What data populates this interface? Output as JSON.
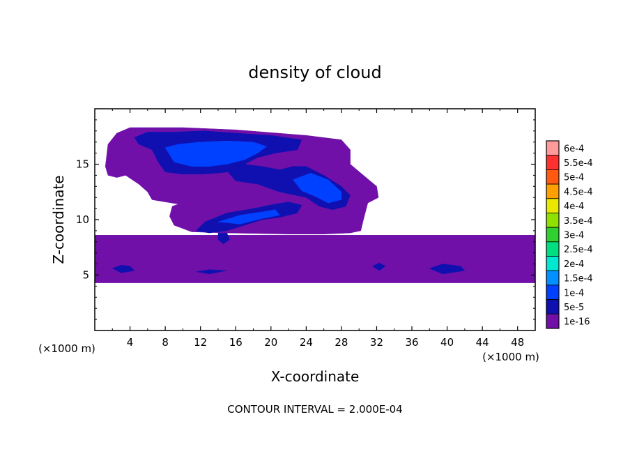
{
  "chart_data": {
    "type": "heatmap",
    "title": "density of cloud",
    "xlabel": "X-coordinate",
    "ylabel": "Z-coordinate",
    "x_unit": "(×1000 m)",
    "y_unit": "(×1000 m)",
    "xlim": [
      0,
      50
    ],
    "ylim": [
      0,
      20
    ],
    "x_ticks": [
      "4",
      "8",
      "12",
      "16",
      "20",
      "24",
      "28",
      "32",
      "36",
      "40",
      "44",
      "48"
    ],
    "y_ticks": [
      "5",
      "10",
      "15"
    ],
    "footer": "CONTOUR INTERVAL = 2.000E-04",
    "colorbar": {
      "labels": [
        "6e-4",
        "5.5e-4",
        "5e-4",
        "4.5e-4",
        "4e-4",
        "3.5e-4",
        "3e-4",
        "2.5e-4",
        "2e-4",
        "1.5e-4",
        "1e-4",
        "5e-5",
        "1e-16"
      ],
      "colors": [
        "#ff9a9a",
        "#ff3030",
        "#ff5a10",
        "#ffa000",
        "#e8e800",
        "#90e000",
        "#30d030",
        "#00e080",
        "#00e8d0",
        "#0090ff",
        "#0040ff",
        "#1010b0",
        "#7010a8"
      ]
    },
    "regions": [
      {
        "level": "1e-16",
        "polygon": [
          [
            0,
            8.6
          ],
          [
            50,
            8.6
          ],
          [
            50,
            4.3
          ],
          [
            0,
            4.3
          ]
        ]
      },
      {
        "level": "1e-16",
        "polygon": [
          [
            1.2,
            14.8
          ],
          [
            1.5,
            16.8
          ],
          [
            2.5,
            17.8
          ],
          [
            4,
            18.3
          ],
          [
            10,
            18.3
          ],
          [
            16,
            18.1
          ],
          [
            24,
            17.6
          ],
          [
            28,
            17.2
          ],
          [
            29,
            16.3
          ],
          [
            29,
            15
          ],
          [
            30.5,
            14
          ],
          [
            32,
            13
          ],
          [
            32.2,
            12
          ],
          [
            31,
            11.5
          ],
          [
            30.5,
            10
          ],
          [
            30.2,
            9
          ],
          [
            29,
            8.8
          ],
          [
            26,
            8.7
          ],
          [
            22,
            8.7
          ],
          [
            15,
            8.8
          ],
          [
            11,
            8.9
          ],
          [
            9,
            9.5
          ],
          [
            8.5,
            10.3
          ],
          [
            8.8,
            11.2
          ],
          [
            9.5,
            11.4
          ],
          [
            8,
            11.6
          ],
          [
            6.5,
            11.8
          ],
          [
            6,
            12.5
          ],
          [
            5,
            13.2
          ],
          [
            3.5,
            14
          ],
          [
            2.5,
            13.8
          ],
          [
            1.5,
            14
          ]
        ]
      },
      {
        "level": "5e-5",
        "polygon": [
          [
            4.5,
            17.4
          ],
          [
            6,
            17.9
          ],
          [
            9,
            17.9
          ],
          [
            12.5,
            18
          ],
          [
            16,
            17.8
          ],
          [
            20,
            17.6
          ],
          [
            23.5,
            17.2
          ],
          [
            23,
            16.3
          ],
          [
            20.5,
            16
          ],
          [
            18.5,
            15.6
          ],
          [
            17,
            15
          ],
          [
            16,
            14.4
          ],
          [
            14,
            14.2
          ],
          [
            12,
            14.1
          ],
          [
            10,
            14.1
          ],
          [
            8,
            14.3
          ],
          [
            7.2,
            15.2
          ],
          [
            6.5,
            16.3
          ],
          [
            5,
            16.8
          ]
        ]
      },
      {
        "level": "5e-5",
        "polygon": [
          [
            15,
            14.4
          ],
          [
            17,
            15
          ],
          [
            19,
            14.8
          ],
          [
            21,
            14.5
          ],
          [
            22.5,
            14.8
          ],
          [
            24,
            14.8
          ],
          [
            26,
            14
          ],
          [
            28,
            13
          ],
          [
            29,
            12.2
          ],
          [
            28.5,
            11.2
          ],
          [
            27,
            10.9
          ],
          [
            25.5,
            11.2
          ],
          [
            24,
            12
          ],
          [
            21,
            12.5
          ],
          [
            18.5,
            13.2
          ],
          [
            16,
            13.5
          ]
        ]
      },
      {
        "level": "5e-5",
        "polygon": [
          [
            11.5,
            9
          ],
          [
            12.5,
            9.8
          ],
          [
            15,
            10.6
          ],
          [
            18,
            11
          ],
          [
            20.5,
            11.4
          ],
          [
            22,
            11.6
          ],
          [
            23.5,
            11.3
          ],
          [
            23,
            10.6
          ],
          [
            21,
            10.2
          ],
          [
            19,
            10
          ],
          [
            17,
            9.5
          ],
          [
            15,
            9
          ],
          [
            13,
            8.8
          ]
        ]
      },
      {
        "level": "1e-4",
        "polygon": [
          [
            8,
            16.5
          ],
          [
            9.5,
            16.8
          ],
          [
            12,
            17
          ],
          [
            15,
            17.1
          ],
          [
            18,
            17
          ],
          [
            19.5,
            16.6
          ],
          [
            18.5,
            16
          ],
          [
            17,
            15.4
          ],
          [
            15,
            15
          ],
          [
            13,
            14.8
          ],
          [
            11,
            14.8
          ],
          [
            9,
            15.2
          ]
        ]
      },
      {
        "level": "1e-4",
        "polygon": [
          [
            22.5,
            13.6
          ],
          [
            24.5,
            14.2
          ],
          [
            26.5,
            13.6
          ],
          [
            28,
            12.5
          ],
          [
            28,
            11.8
          ],
          [
            26.5,
            11.5
          ],
          [
            25,
            12.1
          ],
          [
            23.5,
            12.6
          ]
        ]
      },
      {
        "level": "1e-4",
        "polygon": [
          [
            14,
            9.8
          ],
          [
            16.5,
            10.4
          ],
          [
            19,
            10.7
          ],
          [
            20.5,
            10.9
          ],
          [
            21,
            10.4
          ],
          [
            19,
            10.1
          ],
          [
            16.5,
            9.6
          ]
        ]
      },
      {
        "level": "5e-5",
        "polygon": [
          [
            2,
            5.6
          ],
          [
            3,
            5.9
          ],
          [
            4,
            5.8
          ],
          [
            4.5,
            5.4
          ],
          [
            3,
            5.2
          ]
        ]
      },
      {
        "level": "5e-5",
        "polygon": [
          [
            38,
            5.6
          ],
          [
            39.5,
            6
          ],
          [
            41.5,
            5.8
          ],
          [
            42,
            5.4
          ],
          [
            39.5,
            5.1
          ]
        ]
      },
      {
        "level": "5e-5",
        "polygon": [
          [
            31.5,
            5.8
          ],
          [
            32.3,
            6.1
          ],
          [
            33,
            5.8
          ],
          [
            32.3,
            5.4
          ]
        ]
      },
      {
        "level": "5e-5",
        "polygon": [
          [
            11.5,
            5.3
          ],
          [
            13,
            5.5
          ],
          [
            15,
            5.4
          ],
          [
            13,
            5.1
          ]
        ]
      },
      {
        "level": "5e-5",
        "polygon": [
          [
            14,
            8.8
          ],
          [
            15,
            8.8
          ],
          [
            15.3,
            8.2
          ],
          [
            14.6,
            7.8
          ],
          [
            14,
            8.2
          ]
        ]
      }
    ]
  }
}
